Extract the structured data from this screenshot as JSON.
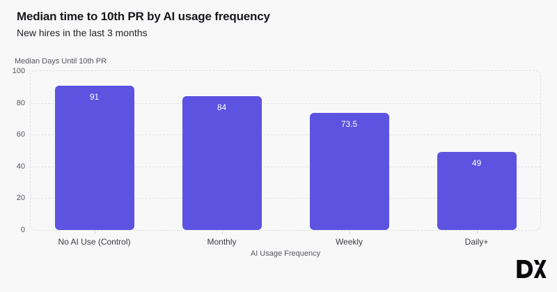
{
  "chart_data": {
    "type": "bar",
    "title": "Median time to 10th PR by AI usage frequency",
    "subtitle": "New hires in the last 3 months",
    "categories": [
      "No AI Use (Control)",
      "Monthly",
      "Weekly",
      "Daily+"
    ],
    "values": [
      91,
      84,
      73.5,
      49
    ],
    "value_labels": [
      "91",
      "84",
      "73.5",
      "49"
    ],
    "xlabel": "AI Usage Frequency",
    "ylabel": "Median Days Until 10th PR",
    "ylim": [
      0,
      100
    ],
    "yticks": [
      0,
      20,
      40,
      60,
      80,
      100
    ],
    "grid": "dashed horizontal, dashed rounded plot border",
    "legend": "none",
    "bar_color": "#5C53E1",
    "value_label_color": "#FFFFFF"
  },
  "branding": {
    "logo_text": "DX",
    "logo_color": "#0B0B0D"
  },
  "colors": {
    "background": "#F8F8F9",
    "grid": "#E0E0E6",
    "axis_text": "#55565C",
    "category_text": "#3A3B41",
    "title_text": "#17181B"
  }
}
